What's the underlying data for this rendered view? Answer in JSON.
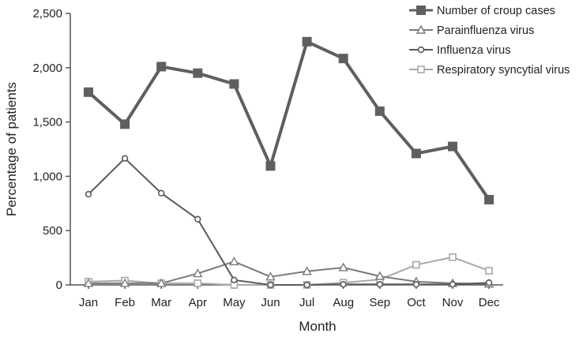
{
  "chart_data": {
    "type": "line",
    "xlabel": "Month",
    "ylabel": "Percentage of patients",
    "ylim": [
      0,
      2500
    ],
    "yticks": [
      0,
      500,
      1000,
      1500,
      2000,
      2500
    ],
    "ytick_labels": [
      "0",
      "500",
      "1,000",
      "1,500",
      "2,000",
      "2,500"
    ],
    "categories": [
      "Jan",
      "Feb",
      "Mar",
      "Apr",
      "May",
      "Jun",
      "Jul",
      "Aug",
      "Sep",
      "Oct",
      "Nov",
      "Dec"
    ],
    "grid": false,
    "legend_position": "top-right",
    "series": [
      {
        "name": "Number of croup cases",
        "marker": "filled-square",
        "color": "#5f5f5f",
        "values": [
          1775,
          1480,
          2010,
          1950,
          1850,
          1095,
          2240,
          2085,
          1600,
          1210,
          1275,
          785
        ]
      },
      {
        "name": "Parainfluenza virus",
        "marker": "open-triangle",
        "color": "#7a7a7a",
        "values": [
          15,
          15,
          15,
          105,
          215,
          75,
          125,
          160,
          80,
          30,
          15,
          10
        ]
      },
      {
        "name": "Influenza virus",
        "marker": "open-circle",
        "color": "#5a5a5a",
        "values": [
          835,
          1165,
          845,
          605,
          45,
          0,
          0,
          5,
          5,
          5,
          5,
          20
        ]
      },
      {
        "name": "Respiratory syncytial virus",
        "marker": "open-square",
        "color": "#a8a8a8",
        "values": [
          30,
          40,
          15,
          15,
          0,
          0,
          0,
          20,
          50,
          185,
          255,
          130
        ]
      }
    ]
  }
}
